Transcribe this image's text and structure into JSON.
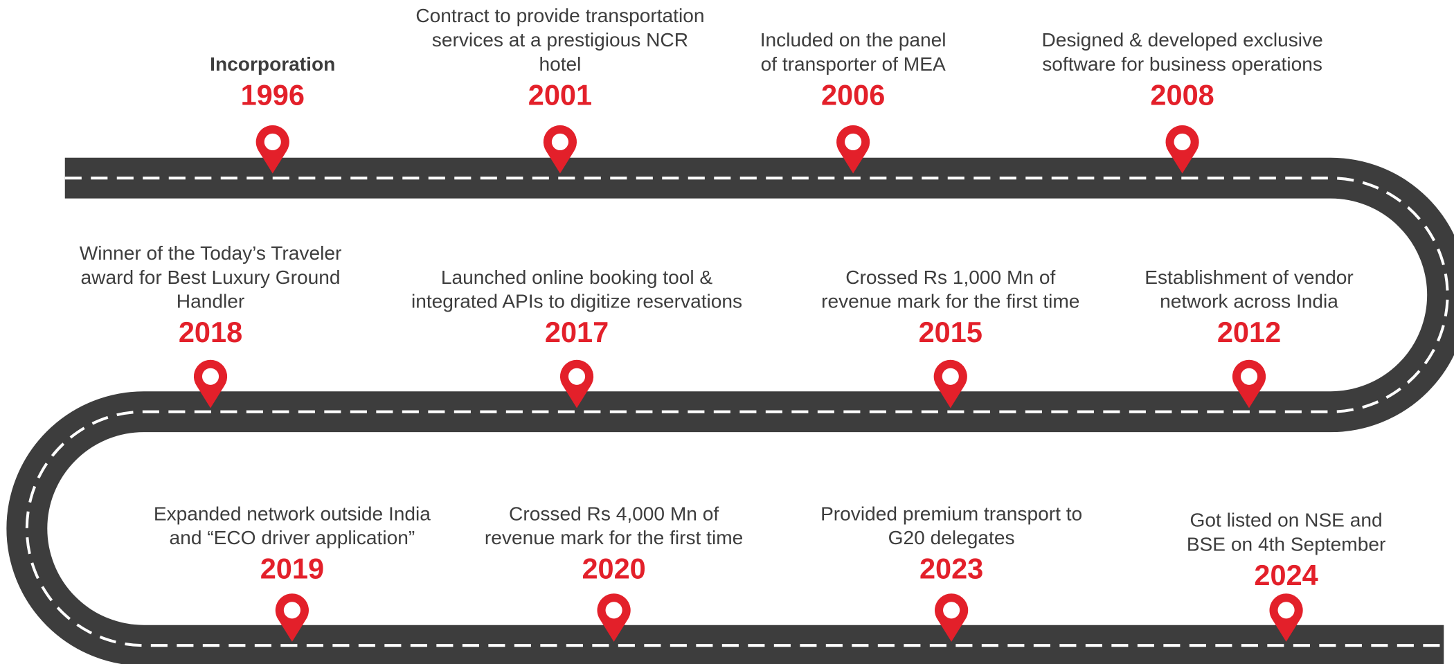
{
  "milestones": [
    {
      "year": "1996",
      "lines": [
        "Incorporation"
      ]
    },
    {
      "year": "2001",
      "lines": [
        "Contract to provide transportation",
        "services at a prestigious NCR",
        "hotel"
      ]
    },
    {
      "year": "2006",
      "lines": [
        "Included on the panel",
        "of transporter of MEA"
      ]
    },
    {
      "year": "2008",
      "lines": [
        "Designed & developed exclusive",
        "software for business operations"
      ]
    },
    {
      "year": "2012",
      "lines": [
        "Establishment of vendor",
        "network across India"
      ]
    },
    {
      "year": "2015",
      "lines": [
        "Crossed Rs 1,000 Mn of",
        "revenue mark for the first time"
      ]
    },
    {
      "year": "2017",
      "lines": [
        "Launched online booking tool &",
        "integrated APIs to digitize reservations"
      ]
    },
    {
      "year": "2018",
      "lines": [
        "Winner of the Today’s Traveler",
        "award for Best Luxury Ground",
        "Handler"
      ]
    },
    {
      "year": "2019",
      "lines": [
        "Expanded network outside India",
        "and “ECO driver application”"
      ]
    },
    {
      "year": "2020",
      "lines": [
        "Crossed Rs 4,000 Mn of",
        "revenue mark for the first time"
      ]
    },
    {
      "year": "2023",
      "lines": [
        "Provided premium transport to",
        "G20 delegates"
      ]
    },
    {
      "year": "2024",
      "lines": [
        "Got listed on NSE and",
        "BSE on 4th September"
      ]
    }
  ]
}
